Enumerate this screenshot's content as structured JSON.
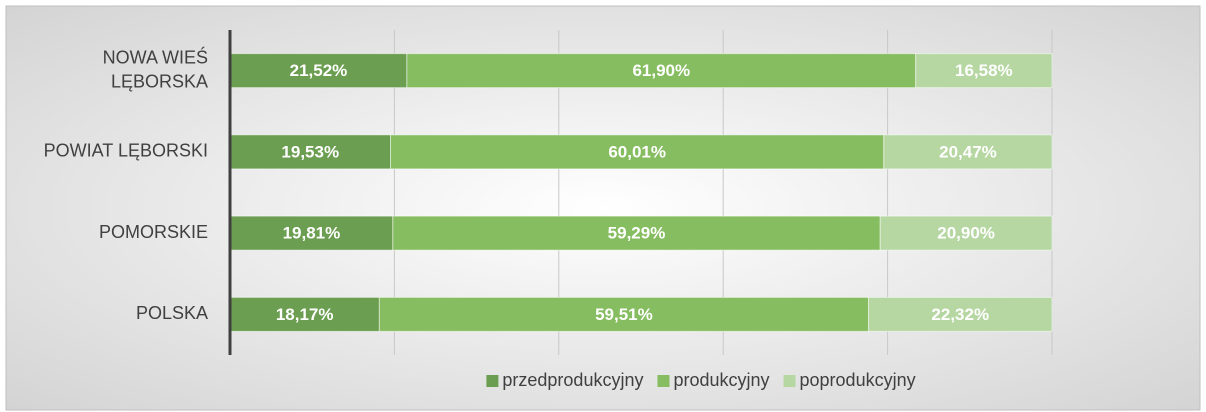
{
  "chart_data": {
    "type": "stacked_bar_horizontal",
    "categories": [
      "NOWA WIEŚ LĘBORSKA",
      "POWIAT LĘBORSKI",
      "POMORSKIE",
      "POLSKA"
    ],
    "series": [
      {
        "name": "przedprodukcyjny",
        "color": "#6b9e50",
        "values": [
          21.52,
          19.53,
          19.81,
          18.17
        ],
        "value_labels": [
          "21,52%",
          "19,53%",
          "19,81%",
          "18,17%"
        ]
      },
      {
        "name": "produkcyjny",
        "color": "#86bd60",
        "values": [
          61.9,
          60.01,
          59.29,
          59.51
        ],
        "value_labels": [
          "61,90%",
          "60,01%",
          "59,29%",
          "59,51%"
        ]
      },
      {
        "name": "poprodukcyjny",
        "color": "#b6d7a2",
        "values": [
          16.58,
          20.47,
          20.9,
          22.32
        ],
        "value_labels": [
          "16,58%",
          "20,47%",
          "20,90%",
          "22,32%"
        ]
      }
    ],
    "xlim": [
      0,
      100
    ],
    "xticks": [
      0,
      20,
      40,
      60,
      80,
      100
    ],
    "grid": true,
    "legend": "bottom"
  }
}
